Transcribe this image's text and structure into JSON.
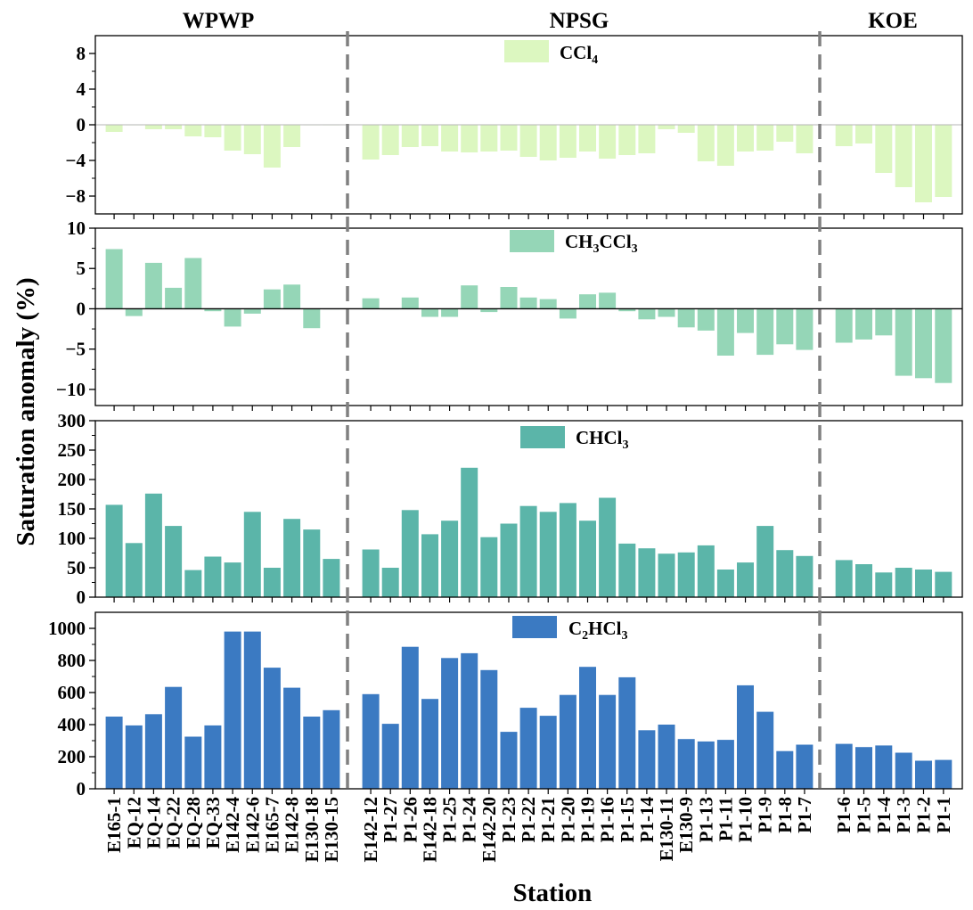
{
  "figure": {
    "ylabel": "Saturation anomaly  (%)",
    "xlabel": "Station",
    "regions": [
      "WPWP",
      "NPSG",
      "KOE"
    ]
  },
  "chart_data": [
    {
      "type": "bar",
      "legend": {
        "base": "CCl",
        "sub": "4",
        "rest": ""
      },
      "color": "#dcf7c0",
      "ylim": [
        -10,
        10
      ],
      "yticks": [
        -8,
        -4,
        0,
        4,
        8
      ],
      "categories": [
        "E165-1",
        "EQ-12",
        "EQ-14",
        "EQ-22",
        "EQ-28",
        "EQ-33",
        "E142-4",
        "E142-6",
        "E165-7",
        "E142-8",
        "E130-18",
        "E130-15",
        "E142-12",
        "P1-27",
        "P1-26",
        "E142-18",
        "P1-25",
        "P1-24",
        "E142-20",
        "P1-23",
        "P1-22",
        "P1-21",
        "P1-20",
        "P1-19",
        "P1-16",
        "P1-15",
        "P1-14",
        "E130-11",
        "E130-9",
        "P1-13",
        "P1-11",
        "P1-10",
        "P1-9",
        "P1-8",
        "P1-7",
        "P1-6",
        "P1-5",
        "P1-4",
        "P1-3",
        "P1-2",
        "P1-1"
      ],
      "values": [
        -0.8,
        0.0,
        -0.5,
        -0.5,
        -1.3,
        -1.4,
        -2.9,
        -3.3,
        -4.8,
        -2.5,
        0.0,
        0.0,
        -3.9,
        -3.4,
        -2.5,
        -2.4,
        -3.0,
        -3.1,
        -3.0,
        -2.9,
        -3.6,
        -4.0,
        -3.7,
        -3.0,
        -3.8,
        -3.4,
        -3.2,
        -0.5,
        -0.9,
        -4.1,
        -4.6,
        -3.0,
        -2.9,
        -1.9,
        -3.2,
        -2.4,
        -2.1,
        -5.4,
        -7.0,
        -8.7,
        -8.1
      ]
    },
    {
      "type": "bar",
      "legend": {
        "base": "CH",
        "sub": "3",
        "rest": "CCl",
        "sub2": "3"
      },
      "color": "#95d6b7",
      "ylim": [
        -12,
        10
      ],
      "yticks": [
        -10,
        -5,
        0,
        5,
        10
      ],
      "categories": [
        "E165-1",
        "EQ-12",
        "EQ-14",
        "EQ-22",
        "EQ-28",
        "EQ-33",
        "E142-4",
        "E142-6",
        "E165-7",
        "E142-8",
        "E130-18",
        "E130-15",
        "E142-12",
        "P1-27",
        "P1-26",
        "E142-18",
        "P1-25",
        "P1-24",
        "E142-20",
        "P1-23",
        "P1-22",
        "P1-21",
        "P1-20",
        "P1-19",
        "P1-16",
        "P1-15",
        "P1-14",
        "E130-11",
        "E130-9",
        "P1-13",
        "P1-11",
        "P1-10",
        "P1-9",
        "P1-8",
        "P1-7",
        "P1-6",
        "P1-5",
        "P1-4",
        "P1-3",
        "P1-2",
        "P1-1"
      ],
      "values": [
        7.4,
        -0.9,
        5.7,
        2.6,
        6.3,
        -0.3,
        -2.2,
        -0.6,
        2.4,
        3.0,
        -2.4,
        0.0,
        1.3,
        0.0,
        1.4,
        -1.0,
        -1.0,
        2.9,
        -0.4,
        2.7,
        1.4,
        1.2,
        -1.2,
        1.8,
        2.0,
        -0.3,
        -1.3,
        -1.0,
        -2.3,
        -2.7,
        -5.8,
        -3.0,
        -5.7,
        -4.4,
        -5.1,
        -4.2,
        -3.8,
        -3.3,
        -8.3,
        -8.6,
        -9.2
      ]
    },
    {
      "type": "bar",
      "legend": {
        "base": "CHCl",
        "sub": "3",
        "rest": ""
      },
      "color": "#5bb5a9",
      "ylim": [
        0,
        300
      ],
      "yticks": [
        0,
        50,
        100,
        150,
        200,
        250,
        300
      ],
      "categories": [
        "E165-1",
        "EQ-12",
        "EQ-14",
        "EQ-22",
        "EQ-28",
        "EQ-33",
        "E142-4",
        "E142-6",
        "E165-7",
        "E142-8",
        "E130-18",
        "E130-15",
        "E142-12",
        "P1-27",
        "P1-26",
        "E142-18",
        "P1-25",
        "P1-24",
        "E142-20",
        "P1-23",
        "P1-22",
        "P1-21",
        "P1-20",
        "P1-19",
        "P1-16",
        "P1-15",
        "P1-14",
        "E130-11",
        "E130-9",
        "P1-13",
        "P1-11",
        "P1-10",
        "P1-9",
        "P1-8",
        "P1-7",
        "P1-6",
        "P1-5",
        "P1-4",
        "P1-3",
        "P1-2",
        "P1-1"
      ],
      "values": [
        157,
        92,
        176,
        121,
        46,
        69,
        59,
        145,
        50,
        133,
        115,
        65,
        81,
        50,
        148,
        107,
        130,
        220,
        102,
        125,
        155,
        145,
        160,
        130,
        169,
        91,
        83,
        74,
        76,
        88,
        47,
        59,
        121,
        80,
        70,
        63,
        56,
        42,
        50,
        47,
        43
      ]
    },
    {
      "type": "bar",
      "legend": {
        "base": "C",
        "sub": "2",
        "rest": "HCl",
        "sub2": "3"
      },
      "color": "#3b7ac2",
      "ylim": [
        0,
        1100
      ],
      "yticks": [
        0,
        200,
        400,
        600,
        800,
        1000
      ],
      "categories": [
        "E165-1",
        "EQ-12",
        "EQ-14",
        "EQ-22",
        "EQ-28",
        "EQ-33",
        "E142-4",
        "E142-6",
        "E165-7",
        "E142-8",
        "E130-18",
        "E130-15",
        "E142-12",
        "P1-27",
        "P1-26",
        "E142-18",
        "P1-25",
        "P1-24",
        "E142-20",
        "P1-23",
        "P1-22",
        "P1-21",
        "P1-20",
        "P1-19",
        "P1-16",
        "P1-15",
        "P1-14",
        "E130-11",
        "E130-9",
        "P1-13",
        "P1-11",
        "P1-10",
        "P1-9",
        "P1-8",
        "P1-7",
        "P1-6",
        "P1-5",
        "P1-4",
        "P1-3",
        "P1-2",
        "P1-1"
      ],
      "values": [
        450,
        395,
        465,
        635,
        325,
        395,
        980,
        980,
        755,
        630,
        450,
        490,
        590,
        405,
        885,
        560,
        815,
        845,
        740,
        355,
        505,
        455,
        585,
        760,
        585,
        695,
        365,
        400,
        310,
        295,
        305,
        645,
        480,
        235,
        275,
        280,
        260,
        270,
        225,
        175,
        180
      ]
    }
  ]
}
